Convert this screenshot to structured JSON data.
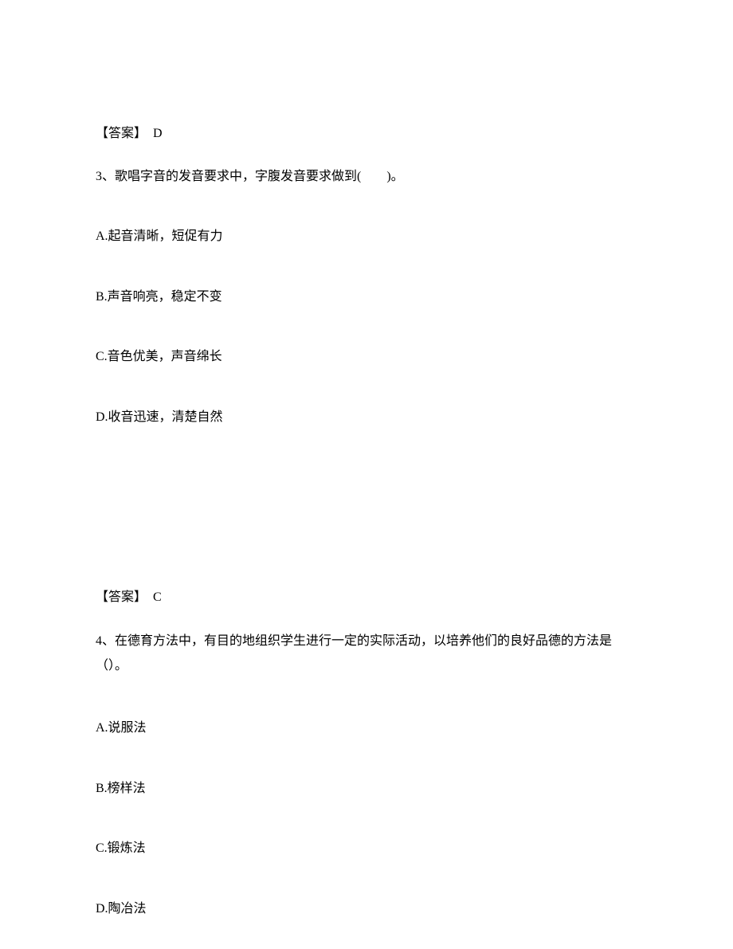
{
  "answer2": {
    "label": "【答案】",
    "value": "D"
  },
  "question3": {
    "number": "3、",
    "text": "歌唱字音的发音要求中，字腹发音要求做到(　　)。",
    "options": {
      "A": "A.起音清晰，短促有力",
      "B": "B.声音响亮，稳定不变",
      "C": "C.音色优美，声音绵长",
      "D": "D.收音迅速，清楚自然"
    }
  },
  "answer3": {
    "label": "【答案】",
    "value": "C"
  },
  "question4": {
    "number": "4、",
    "text": "在德育方法中，有目的地组织学生进行一定的实际活动，以培养他们的良好品德的方法是（）。",
    "options": {
      "A": "A.说服法",
      "B": "B.榜样法",
      "C": "C.锻炼法",
      "D": "D.陶冶法"
    }
  }
}
